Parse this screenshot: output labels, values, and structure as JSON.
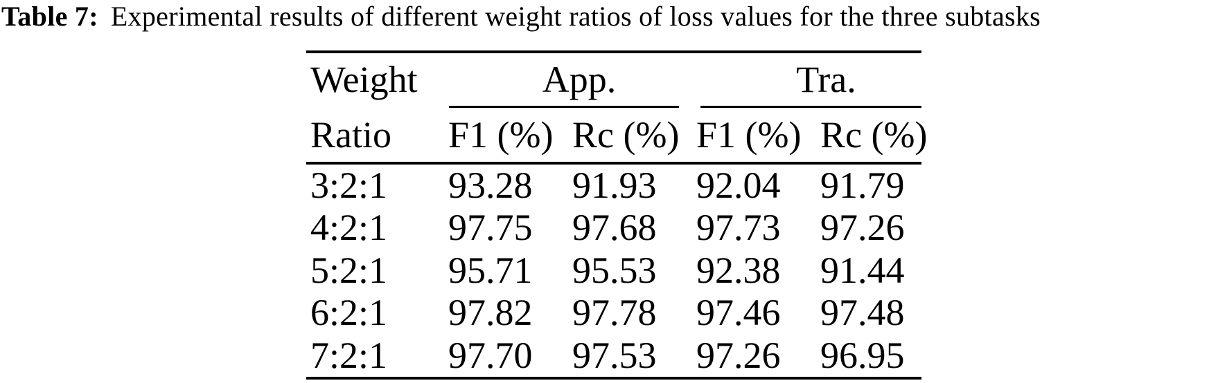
{
  "caption": {
    "label": "Table 7:",
    "text": "Experimental results of different weight ratios of loss values for the three subtasks"
  },
  "table": {
    "corner_header": {
      "line1": "Weight",
      "line2": "Ratio"
    },
    "groups": [
      {
        "label": "App."
      },
      {
        "label": "Tra."
      }
    ],
    "subheaders": [
      "F1 (%)",
      "Rc (%)",
      "F1 (%)",
      "Rc (%)"
    ],
    "rows": [
      {
        "ratio": "3:2:1",
        "values": [
          "93.28",
          "91.93",
          "92.04",
          "91.79"
        ]
      },
      {
        "ratio": "4:2:1",
        "values": [
          "97.75",
          "97.68",
          "97.73",
          "97.26"
        ]
      },
      {
        "ratio": "5:2:1",
        "values": [
          "95.71",
          "95.53",
          "92.38",
          "91.44"
        ]
      },
      {
        "ratio": "6:2:1",
        "values": [
          "97.82",
          "97.78",
          "97.46",
          "97.48"
        ]
      },
      {
        "ratio": "7:2:1",
        "values": [
          "97.70",
          "97.53",
          "97.26",
          "96.95"
        ]
      }
    ],
    "colors": {
      "text": "#000000",
      "rule": "#000000",
      "background": "#ffffff"
    }
  }
}
